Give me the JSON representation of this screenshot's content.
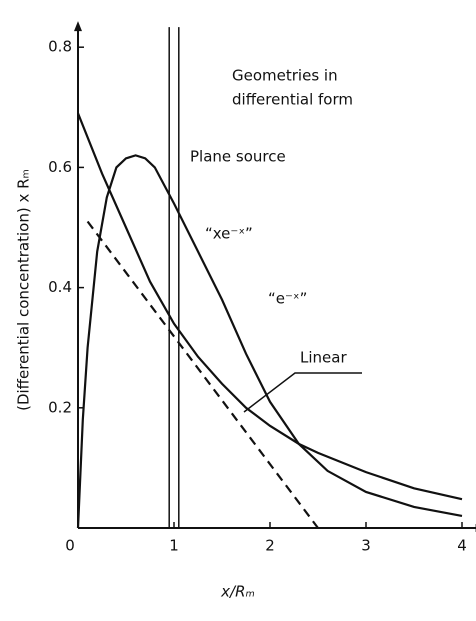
{
  "chart_data": {
    "type": "line",
    "x_label": "x/Rₘ",
    "y_label": "(Differential concentration) x Rₘ",
    "title_lines": [
      "Geometries in",
      "differential form"
    ],
    "xlim": [
      0,
      4.1
    ],
    "ylim": [
      0,
      0.82
    ],
    "xticks": [
      0,
      1,
      2,
      3,
      4
    ],
    "yticks": [
      0.2,
      0.4,
      0.6,
      0.8
    ],
    "series": [
      {
        "name": "“xe⁻ˣ”",
        "color": "#111111",
        "dash": false,
        "x": [
          0,
          0.05,
          0.1,
          0.2,
          0.3,
          0.4,
          0.5,
          0.6,
          0.7,
          0.8,
          1,
          1.25,
          1.5,
          1.75,
          2,
          2.3,
          2.6,
          3,
          3.5,
          4
        ],
        "values": [
          0,
          0.18,
          0.3,
          0.46,
          0.55,
          0.6,
          0.615,
          0.62,
          0.615,
          0.6,
          0.54,
          0.46,
          0.38,
          0.29,
          0.21,
          0.14,
          0.095,
          0.06,
          0.035,
          0.02
        ]
      },
      {
        "name": "“e⁻ˣ”",
        "color": "#111111",
        "dash": false,
        "x": [
          0,
          0.25,
          0.5,
          0.75,
          1,
          1.25,
          1.5,
          1.75,
          2,
          2.3,
          2.5,
          3,
          3.5,
          4
        ],
        "values": [
          0.69,
          0.59,
          0.5,
          0.41,
          0.34,
          0.285,
          0.24,
          0.2,
          0.17,
          0.14,
          0.125,
          0.093,
          0.066,
          0.048
        ]
      },
      {
        "name": "Linear",
        "color": "#111111",
        "dash": true,
        "x": [
          0.1,
          2.5
        ],
        "values": [
          0.51,
          0
        ]
      }
    ],
    "plane_source": {
      "label": "Plane source",
      "x": [
        0.95,
        1.05
      ]
    }
  }
}
